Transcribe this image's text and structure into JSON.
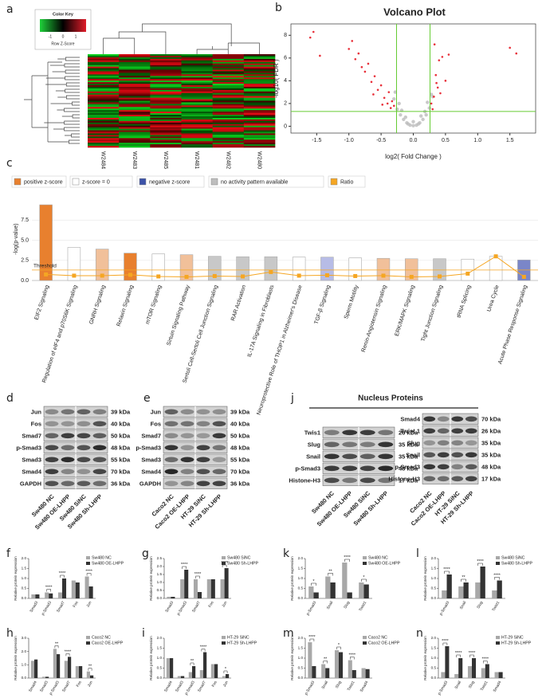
{
  "panels": {
    "a": {
      "letter": "a",
      "color_key": "Color Key",
      "key_ticks": [
        -1,
        0,
        1
      ],
      "key_label": "Row Z-Score",
      "samples": [
        "W2484",
        "W2483",
        "W2485",
        "W2481",
        "W2482",
        "W2480"
      ]
    },
    "d": {
      "letter": "d",
      "rows": [
        {
          "protein": "Jun",
          "kda": "39 kDa"
        },
        {
          "protein": "Fos",
          "kda": "40 kDa"
        },
        {
          "protein": "Smad7",
          "kda": "50 kDa"
        },
        {
          "protein": "p-Smad3",
          "kda": "48 kDa"
        },
        {
          "protein": "Smad3",
          "kda": "55 kDa"
        },
        {
          "protein": "Smad4",
          "kda": "70 kDa"
        },
        {
          "protein": "GAPDH",
          "kda": "36 kDa"
        }
      ],
      "lanes": [
        "Sw480 NC",
        "Sw480 OE-LHPP",
        "Sw480 SiNC",
        "Sw480 Sh-LHPP"
      ]
    },
    "e": {
      "letter": "e",
      "rows": [
        {
          "protein": "Jun",
          "kda": "39 kDa"
        },
        {
          "protein": "Fos",
          "kda": "40 kDa"
        },
        {
          "protein": "Smad7",
          "kda": "50 kDa"
        },
        {
          "protein": "p-Smad3",
          "kda": "48 kDa"
        },
        {
          "protein": "Smad3",
          "kda": "55 kDa"
        },
        {
          "protein": "Smad4",
          "kda": "70 kDa"
        },
        {
          "protein": "GAPDH",
          "kda": "36 kDa"
        }
      ],
      "lanes": [
        "Caco2 NC",
        "Caco2 OE-LHPP",
        "HT-29 SiNC",
        "HT-29 Sh-LHPP"
      ]
    },
    "j": {
      "letter": "j",
      "title": "Nucleus Proteins",
      "left": {
        "rows": [
          {
            "protein": "Twis1",
            "kda": "26 kDa"
          },
          {
            "protein": "Slug",
            "kda": "35 kDa"
          },
          {
            "protein": "Snail",
            "kda": "35 kDa"
          },
          {
            "protein": "p-Smad3",
            "kda": "48 kDa"
          },
          {
            "protein": "Histone-H3",
            "kda": "17 kDa"
          }
        ],
        "lanes": [
          "Sw480 NC",
          "Sw480 OE-LHPP",
          "Sw480 SiNC",
          "Sw480 Sh-LHPP"
        ]
      },
      "right": {
        "rows": [
          {
            "protein": "Smad4",
            "kda": "70 kDa"
          },
          {
            "protein": "Twist 1",
            "kda": "26 kDa"
          },
          {
            "protein": "Slug",
            "kda": "35 kDa"
          },
          {
            "protein": "Snail",
            "kda": "35 kDa"
          },
          {
            "protein": "p-Smad3",
            "kda": "48 kDa"
          },
          {
            "protein": "Histone-H3",
            "kda": "17 kDa"
          }
        ],
        "lanes": [
          "Caco2 NC",
          "Caco2 OE-LHPP",
          "HT-29 SiNC",
          "HT-29 Sh-LHPP"
        ]
      }
    }
  },
  "chart_data": [
    {
      "type": "scatter",
      "panel": "b",
      "title": "Volcano Plot",
      "x_label": "log2( Fold Change )",
      "y_label": "-log10( FDR )",
      "xlim": [
        -1.9,
        1.9
      ],
      "ylim": [
        -0.6,
        9
      ],
      "xticks": [
        -1.5,
        {
          "value": -1,
          "label": "-1.0"
        },
        -0.5,
        {
          "value": 0,
          "label": "0.0"
        },
        0.5,
        {
          "value": 1,
          "label": "1.0"
        },
        1.5
      ],
      "yticks": [
        0,
        2,
        4,
        6,
        8
      ],
      "thresholds": {
        "x": [
          -0.26,
          0.26
        ],
        "y": 1.3,
        "color": "#66cc33"
      },
      "series": [
        {
          "color": "#bbbbbb",
          "x": [
            -0.25,
            -0.2,
            -0.15,
            -0.1,
            -0.05,
            0,
            0.05,
            0.1,
            0.15,
            0.2,
            0.25,
            -0.3,
            -0.22,
            0.22,
            0.3,
            -0.18,
            0.18,
            -0.12,
            0.12,
            0,
            -0.08,
            0.08,
            -0.28,
            0.28
          ],
          "y": [
            1.5,
            1.0,
            0.6,
            0.3,
            0.1,
            0.05,
            0.1,
            0.3,
            0.6,
            1.0,
            1.6,
            2.4,
            2.0,
            2.1,
            2.6,
            1.4,
            1.3,
            0.8,
            0.9,
            0.4,
            0.2,
            0.2,
            3.0,
            2.8
          ]
        },
        {
          "color": "#e8303a",
          "x": [
            -1.6,
            -1.55,
            -1.45,
            -1.0,
            -0.95,
            -0.9,
            -0.85,
            -0.8,
            -0.75,
            -0.7,
            -0.65,
            -0.6,
            -0.55,
            -0.5,
            -0.45,
            -0.4,
            -0.35,
            -0.3,
            -0.62,
            -0.48,
            -0.38,
            -0.33,
            0.3,
            0.32,
            0.35,
            0.38,
            0.4,
            0.45,
            0.5,
            0.55,
            0.28,
            0.33,
            0.42,
            0.36,
            1.5,
            1.6
          ],
          "y": [
            7.8,
            8.3,
            6.2,
            6.8,
            7.5,
            5.9,
            6.4,
            5.2,
            4.8,
            5.5,
            3.9,
            4.4,
            3.2,
            3.6,
            2.5,
            2.0,
            1.6,
            1.8,
            2.8,
            1.9,
            3.0,
            2.2,
            1.5,
            2.6,
            4.5,
            3.4,
            5.8,
            6.1,
            4.0,
            6.3,
            2.0,
            7.2,
            2.9,
            3.8,
            6.9,
            6.4
          ]
        }
      ]
    },
    {
      "type": "bar",
      "panel": "c",
      "y_label": "-log(p-value)",
      "legend": [
        {
          "label": "positive z-score",
          "color": "#e8802e"
        },
        {
          "label": "z-score = 0",
          "color": "#ffffff"
        },
        {
          "label": "negative z-score",
          "color": "#3c52a8"
        },
        {
          "label": "no activity pattern available",
          "color": "#bdbdbd"
        },
        {
          "label": "Ratio",
          "color": "#f5a623"
        }
      ],
      "categories": [
        "EIF2 Signaling",
        "Regulation of eIF4 and p70S6K Signaling",
        "GNRH Signaling",
        "Relaxin Signaling",
        "mTOR Signaling",
        "Sirtuin Signaling Pathway",
        "Sertoli Cell-Sertoli Cell Junction Signaling",
        "RAR Activation",
        "IL-17A Signaling in Fibroblasts",
        "Neuroprotective Role of THOP1 in Alzheimer's Disease",
        "TGF-β Signaling",
        "Sperm Motility",
        "Renin-Angiotensin Signaling",
        "ERK/MAPK Signaling",
        "Tight Junction Signaling",
        "tRNA Splicing",
        "Urea Cycle",
        "Acute Phase Response Signaling"
      ],
      "values": [
        9.4,
        4.1,
        3.9,
        3.4,
        3.3,
        3.2,
        3.0,
        2.95,
        2.95,
        2.9,
        2.9,
        2.8,
        2.75,
        2.7,
        2.7,
        2.65,
        3.0,
        2.55
      ],
      "colors": [
        "#e8802e",
        "#ffffff",
        "#f1c09a",
        "#e8802e",
        "#ffffff",
        "#f1c09a",
        "#c8c8c8",
        "#c8c8c8",
        "#c8c8c8",
        "#ffffff",
        "#b7bce6",
        "#ffffff",
        "#f1c09a",
        "#f1c09a",
        "#c8c8c8",
        "#ffffff",
        "#ffffff",
        "#7a86c8"
      ],
      "ratio": [
        0.75,
        0.6,
        0.6,
        0.7,
        0.5,
        0.45,
        0.55,
        0.5,
        1.05,
        0.6,
        0.65,
        0.55,
        0.6,
        0.45,
        0.5,
        0.85,
        3.0,
        0.45
      ],
      "threshold": {
        "value": 1.3,
        "label": "Threshold"
      },
      "ylim": [
        0,
        9.6
      ],
      "yticks": [
        {
          "value": 0,
          "label": "0.0"
        },
        2.5,
        {
          "value": 5,
          "label": "5.0"
        },
        7.5
      ]
    },
    {
      "type": "grouped_bar",
      "panel": "f",
      "y_label": "Relative protein expression",
      "categories": [
        "Smad3",
        "p-Smad3",
        "Smad7",
        "Fos",
        "Jun"
      ],
      "series": [
        {
          "name": "Sw480 NC",
          "color": "#a8a8a8",
          "values": [
            0.2,
            0.3,
            0.3,
            0.9,
            1.1
          ]
        },
        {
          "name": "Sw480 OE-LHPP",
          "color": "#333333",
          "values": [
            0.2,
            0.25,
            1.0,
            0.8,
            0.6
          ]
        }
      ],
      "significance": [
        {
          "index": 1,
          "label": "****"
        },
        {
          "index": 2,
          "label": "****"
        },
        {
          "index": 4,
          "label": "****"
        }
      ],
      "ylim": [
        0,
        2
      ],
      "yticks": [
        {
          "value": 0,
          "label": "0.0"
        },
        0.5,
        {
          "value": 1,
          "label": "1.0"
        },
        1.5,
        {
          "value": 2,
          "label": "2.0"
        }
      ]
    },
    {
      "type": "grouped_bar",
      "panel": "g",
      "y_label": "Relative protein expression",
      "categories": [
        "Smad3",
        "p-Smad3",
        "Smad7",
        "Fos",
        "Jun"
      ],
      "series": [
        {
          "name": "Sw480 SiNC",
          "color": "#a8a8a8",
          "values": [
            0.1,
            1.2,
            1.2,
            1.2,
            1.2
          ]
        },
        {
          "name": "Sw480 Sh-LHPP",
          "color": "#333333",
          "values": [
            0.1,
            1.8,
            0.4,
            1.2,
            1.9
          ]
        }
      ],
      "significance": [
        {
          "index": 1,
          "label": "****"
        },
        {
          "index": 2,
          "label": "****"
        },
        {
          "index": 4,
          "label": "****"
        }
      ],
      "ylim": [
        0,
        2.5
      ],
      "yticks": [
        {
          "value": 0,
          "label": "0.0"
        },
        0.5,
        {
          "value": 1,
          "label": "1.0"
        },
        1.5,
        {
          "value": 2,
          "label": "2.0"
        },
        2.5
      ]
    },
    {
      "type": "grouped_bar",
      "panel": "h",
      "y_label": "Relative protein expression",
      "categories": [
        "Smad4",
        "Smad3",
        "p-Smad3",
        "Smad7",
        "Fos",
        "Jun"
      ],
      "series": [
        {
          "name": "Caco2 NC",
          "color": "#a8a8a8",
          "values": [
            1.3,
            0.1,
            2.2,
            1.3,
            0.9,
            0.5
          ]
        },
        {
          "name": "Caco2 OE-LHPP",
          "color": "#333333",
          "values": [
            1.4,
            0.1,
            1.8,
            1.6,
            0.9,
            0.2
          ]
        }
      ],
      "significance": [
        {
          "index": 2,
          "label": "**"
        },
        {
          "index": 3,
          "label": "****"
        },
        {
          "index": 5,
          "label": "**"
        }
      ],
      "ylim": [
        0,
        3
      ],
      "yticks": [
        {
          "value": 0,
          "label": "0.0"
        },
        {
          "value": 1,
          "label": "1.0"
        },
        {
          "value": 2,
          "label": "2.0"
        },
        {
          "value": 3,
          "label": "3.0"
        }
      ]
    },
    {
      "type": "grouped_bar",
      "panel": "i",
      "y_label": "Relative protein expression",
      "categories": [
        "Smad4",
        "Smad3",
        "p-Smad3",
        "Smad7",
        "Fos",
        "Jun"
      ],
      "series": [
        {
          "name": "HT-29 SiNC",
          "color": "#a8a8a8",
          "values": [
            1.0,
            0.1,
            0.3,
            0.4,
            0.7,
            0.1
          ]
        },
        {
          "name": "HT-29 Sh-LHPP",
          "color": "#333333",
          "values": [
            1.0,
            0.1,
            0.6,
            1.3,
            0.7,
            0.2
          ]
        }
      ],
      "significance": [
        {
          "index": 2,
          "label": "**"
        },
        {
          "index": 3,
          "label": "****"
        },
        {
          "index": 5,
          "label": "*"
        }
      ],
      "ylim": [
        0,
        2
      ],
      "yticks": [
        {
          "value": 0,
          "label": "0.0"
        },
        0.5,
        {
          "value": 1,
          "label": "1.0"
        },
        1.5,
        {
          "value": 2,
          "label": "2.0"
        }
      ]
    },
    {
      "type": "grouped_bar",
      "panel": "k",
      "y_label": "Relative protein expression",
      "categories": [
        "p-Smad3",
        "Snail",
        "Slug",
        "Twist1"
      ],
      "series": [
        {
          "name": "Sw480 NC",
          "color": "#a8a8a8",
          "values": [
            0.6,
            1.1,
            1.8,
            0.8
          ]
        },
        {
          "name": "Sw480 OE-LHPP",
          "color": "#333333",
          "values": [
            0.3,
            0.8,
            0.3,
            0.7
          ]
        }
      ],
      "significance": [
        {
          "index": 0,
          "label": "*"
        },
        {
          "index": 1,
          "label": "**"
        },
        {
          "index": 2,
          "label": "****"
        },
        {
          "index": 3,
          "label": "*"
        }
      ],
      "ylim": [
        0,
        2
      ],
      "yticks": [
        {
          "value": 0,
          "label": "0.0"
        },
        0.5,
        {
          "value": 1,
          "label": "1.0"
        },
        1.5,
        {
          "value": 2,
          "label": "2.0"
        }
      ]
    },
    {
      "type": "grouped_bar",
      "panel": "l",
      "y_label": "Relative protein expression",
      "categories": [
        "p-Smad3",
        "Snail",
        "Slug",
        "Twist1"
      ],
      "series": [
        {
          "name": "Sw480 SiNC",
          "color": "#a8a8a8",
          "values": [
            0.4,
            0.6,
            0.8,
            0.4
          ]
        },
        {
          "name": "Sw480 Sh-LHPP",
          "color": "#333333",
          "values": [
            1.2,
            0.8,
            1.6,
            0.9
          ]
        }
      ],
      "significance": [
        {
          "index": 0,
          "label": "****"
        },
        {
          "index": 1,
          "label": "**"
        },
        {
          "index": 2,
          "label": "****"
        },
        {
          "index": 3,
          "label": "****"
        }
      ],
      "ylim": [
        0,
        2
      ],
      "yticks": [
        {
          "value": 0,
          "label": "0.0"
        },
        0.5,
        {
          "value": 1,
          "label": "1.0"
        },
        1.5,
        {
          "value": 2,
          "label": "2.0"
        }
      ]
    },
    {
      "type": "grouped_bar",
      "panel": "m",
      "y_label": "Relative protein expression",
      "categories": [
        "p-Smad3",
        "Snail",
        "Slug",
        "Twist1",
        "Smad4"
      ],
      "series": [
        {
          "name": "Caco2 NC",
          "color": "#a8a8a8",
          "values": [
            1.8,
            0.7,
            1.4,
            0.9,
            0.5
          ]
        },
        {
          "name": "Caco2 OE-LHPP",
          "color": "#333333",
          "values": [
            0.6,
            0.5,
            1.3,
            0.4,
            0.45
          ]
        }
      ],
      "significance": [
        {
          "index": 0,
          "label": "****"
        },
        {
          "index": 1,
          "label": "**"
        },
        {
          "index": 2,
          "label": "*"
        },
        {
          "index": 3,
          "label": "****"
        }
      ],
      "ylim": [
        0,
        2
      ],
      "yticks": [
        {
          "value": 0,
          "label": "0.0"
        },
        0.5,
        {
          "value": 1,
          "label": "1.0"
        },
        1.5,
        {
          "value": 2,
          "label": "2.0"
        }
      ]
    },
    {
      "type": "grouped_bar",
      "panel": "n",
      "y_label": "Relative protein expression",
      "categories": [
        "p-Smad3",
        "Snail",
        "Slug",
        "Twist1",
        "Smad4"
      ],
      "series": [
        {
          "name": "HT-29 SiNC",
          "color": "#a8a8a8",
          "values": [
            0.3,
            0.2,
            0.6,
            0.5,
            0.3
          ]
        },
        {
          "name": "HT-29 Sh-LHPP",
          "color": "#333333",
          "values": [
            1.6,
            1.0,
            1.0,
            0.7,
            0.3
          ]
        }
      ],
      "significance": [
        {
          "index": 0,
          "label": "****"
        },
        {
          "index": 1,
          "label": "****"
        },
        {
          "index": 2,
          "label": "****"
        },
        {
          "index": 3,
          "label": "****"
        }
      ],
      "ylim": [
        0,
        2
      ],
      "yticks": [
        {
          "value": 0,
          "label": "0.0"
        },
        0.5,
        {
          "value": 1,
          "label": "1.0"
        },
        1.5,
        {
          "value": 2,
          "label": "2.0"
        }
      ]
    }
  ]
}
